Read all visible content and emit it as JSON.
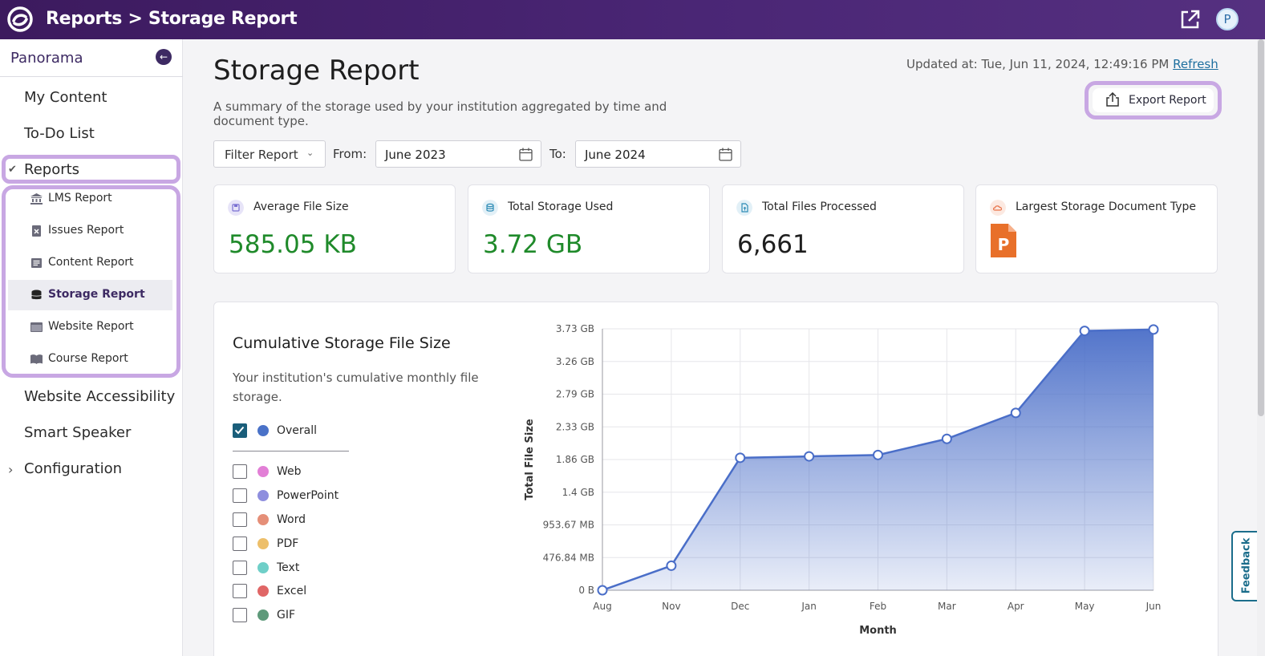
{
  "header": {
    "breadcrumb": "Reports > Storage Report",
    "avatar_initial": "P"
  },
  "sidebar": {
    "title": "Panorama",
    "items": [
      {
        "label": "My Content"
      },
      {
        "label": "To-Do List"
      },
      {
        "label": "Reports"
      },
      {
        "label": "Website Accessibility"
      },
      {
        "label": "Smart Speaker"
      },
      {
        "label": "Configuration"
      }
    ],
    "report_items": [
      {
        "label": "LMS Report",
        "icon": "institution-icon"
      },
      {
        "label": "Issues Report",
        "icon": "issues-icon"
      },
      {
        "label": "Content Report",
        "icon": "content-icon"
      },
      {
        "label": "Storage Report",
        "icon": "database-icon",
        "active": true
      },
      {
        "label": "Website Report",
        "icon": "website-icon"
      },
      {
        "label": "Course Report",
        "icon": "course-icon"
      }
    ]
  },
  "main": {
    "title": "Storage Report",
    "subtitle": "A summary of the storage used by your institution aggregated by time and document type.",
    "updated_label": "Updated at: Tue, Jun 11, 2024, 12:49:16 PM",
    "refresh_label": "Refresh",
    "export_label": "Export Report",
    "filter_label": "Filter Report",
    "from_label": "From:",
    "from_value": "June 2023",
    "to_label": "To:",
    "to_value": "June 2024"
  },
  "cards": [
    {
      "label": "Average File Size",
      "value": "585.05 KB",
      "icon": "save-icon",
      "icon_color": "#7a6fd1"
    },
    {
      "label": "Total Storage Used",
      "value": "3.72 GB",
      "icon": "database-icon",
      "icon_color": "#2d8bb5"
    },
    {
      "label": "Total Files Processed",
      "value": "6,661",
      "icon": "file-icon",
      "icon_color": "#2d8bb5"
    },
    {
      "label": "Largest Storage Document Type",
      "value": "",
      "icon": "cloud-icon",
      "icon_color": "#e8734a",
      "doc_type_icon": "powerpoint-icon",
      "doc_type_letter": "P"
    }
  ],
  "chart_section": {
    "title": "Cumulative Storage File Size",
    "description": "Your institution's cumulative monthly file storage.",
    "legend": [
      {
        "label": "Overall",
        "color": "#4a72c8",
        "checked": true
      },
      {
        "label": "Web",
        "color": "#e27fd6",
        "checked": false
      },
      {
        "label": "PowerPoint",
        "color": "#8e8ede",
        "checked": false
      },
      {
        "label": "Word",
        "color": "#e58f78",
        "checked": false
      },
      {
        "label": "PDF",
        "color": "#edbf6a",
        "checked": false
      },
      {
        "label": "Text",
        "color": "#6fcfc8",
        "checked": false
      },
      {
        "label": "Excel",
        "color": "#e06666",
        "checked": false
      },
      {
        "label": "GIF",
        "color": "#5e9a7a",
        "checked": false
      }
    ]
  },
  "chart_data": {
    "type": "area",
    "title": "Cumulative Storage File Size",
    "xlabel": "Month",
    "ylabel": "Total File Size",
    "categories": [
      "Aug",
      "Nov",
      "Dec",
      "Jan",
      "Feb",
      "Mar",
      "Apr",
      "May",
      "Jun"
    ],
    "series": [
      {
        "name": "Overall",
        "color": "#4a72c8",
        "values_gb": [
          0.0,
          0.35,
          1.89,
          1.91,
          1.93,
          2.16,
          2.53,
          3.7,
          3.72
        ]
      }
    ],
    "ytick_labels": [
      "0 B",
      "476.84 MB",
      "953.67 MB",
      "1.4 GB",
      "1.86 GB",
      "2.33 GB",
      "2.79 GB",
      "3.26 GB",
      "3.73 GB"
    ],
    "ylim_gb": [
      0,
      3.73
    ],
    "grid": true
  },
  "feedback_label": "Feedback"
}
